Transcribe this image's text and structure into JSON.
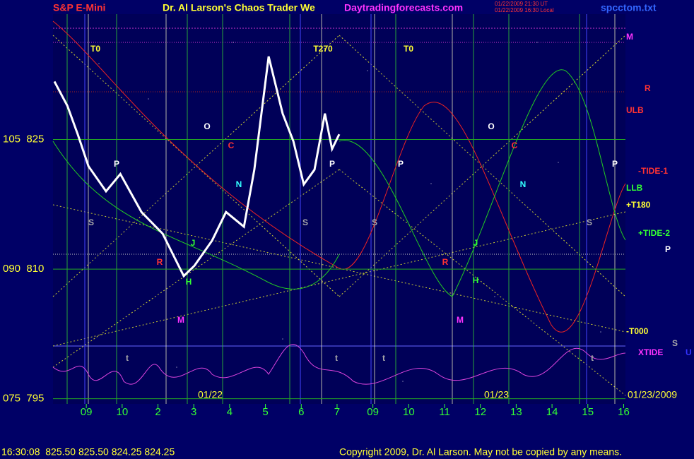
{
  "chart_data": {
    "type": "line",
    "title": "S&P E-Mini",
    "subtitle": "Dr. Al Larson's Chaos Trader We",
    "site": "Daytradingforecasts.com",
    "timestamp_ut": "01/22/2009 21:30 UT",
    "timestamp_local": "01/22/2009 16:30 Local",
    "file": "spcctom.txt",
    "footer_quote": "16:30:08  825.50 825.50 824.25 824.25",
    "copyright": "Copyright 2009, Dr. Al Larson. May not be copied by any means.",
    "date_labels": [
      "01/22",
      "01/23",
      "01/23/2009"
    ],
    "annotations": [
      "T0",
      "T270",
      "T0",
      "O",
      "O",
      "C",
      "C",
      "P",
      "P",
      "P",
      "P",
      "N",
      "N",
      "S",
      "S",
      "S",
      "S",
      "J",
      "J",
      "R",
      "R",
      "H",
      "H",
      "M",
      "M",
      "t",
      "t",
      "t",
      "t"
    ],
    "right_labels": [
      "M",
      "R",
      "ULB",
      "-TIDE-1",
      "LLB",
      "+T180",
      "+TIDE-2",
      "P",
      "-T000",
      "XTIDE",
      "S",
      "U"
    ],
    "x": [
      -0.89,
      -0.53,
      -0.24,
      0.06,
      0.55,
      0.95,
      1.54,
      2.13,
      2.72,
      3.02,
      3.51,
      3.9,
      4.4,
      4.69,
      5.09,
      5.48,
      5.78,
      6.07,
      6.37,
      6.66,
      6.86,
      7.06
    ],
    "series": [
      {
        "name": "S&P E-Mini",
        "color": "#ffffff",
        "values": [
          831.7,
          828.9,
          825.6,
          821.9,
          819,
          821,
          816.6,
          814.1,
          809.2,
          810.4,
          813.3,
          816.6,
          814.9,
          821.5,
          834.6,
          828,
          824.8,
          819.8,
          821.5,
          828,
          823.9,
          825.6
        ]
      }
    ],
    "xlim": [
      -0.93,
      15.05
    ],
    "xticks": [
      {
        "value": 0,
        "label": "09"
      },
      {
        "value": 1,
        "label": "10"
      },
      2,
      3,
      4,
      5,
      6,
      7,
      {
        "value": 8,
        "label": "09"
      },
      {
        "value": 9,
        "label": "10"
      },
      {
        "value": 10,
        "label": "11"
      },
      {
        "value": 11,
        "label": "12"
      },
      {
        "value": 12,
        "label": "13"
      },
      {
        "value": 13,
        "label": "14"
      },
      {
        "value": 14,
        "label": "15"
      },
      {
        "value": 15,
        "label": "16"
      }
    ],
    "ylim": [
      794.4,
      839.5
    ],
    "yticks": [
      {
        "value": 825,
        "label": "105  825"
      },
      {
        "value": 810,
        "label": "090  810"
      },
      {
        "value": 795,
        "label": "075  795"
      }
    ],
    "grid": true
  }
}
